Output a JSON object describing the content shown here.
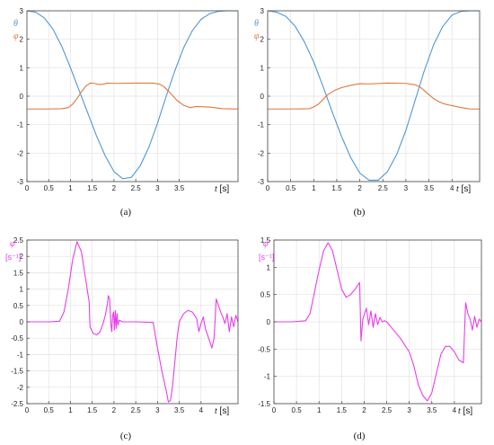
{
  "chart_data": [
    {
      "type": "line",
      "panel": "a",
      "caption": "(a)",
      "xlabel_var": "t",
      "xlabel_unit": "[s]",
      "xlim": [
        0,
        4.85
      ],
      "ylim": [
        -3,
        3
      ],
      "xticks": [
        0,
        0.5,
        1,
        1.5,
        2,
        2.5,
        3,
        3.5
      ],
      "yticks": [
        3,
        2,
        1,
        0,
        -1,
        -2,
        -3
      ],
      "grid": true,
      "series": [
        {
          "name": "θ",
          "color": "#4f97d4",
          "x": [
            0,
            0.2,
            0.4,
            0.6,
            0.8,
            1.0,
            1.2,
            1.4,
            1.6,
            1.8,
            2.0,
            2.2,
            2.4,
            2.6,
            2.8,
            3.0,
            3.2,
            3.4,
            3.6,
            3.8,
            4.0,
            4.2,
            4.4,
            4.6,
            4.85
          ],
          "y": [
            3.0,
            2.95,
            2.75,
            2.35,
            1.75,
            1.0,
            0.2,
            -0.6,
            -1.4,
            -2.1,
            -2.65,
            -2.9,
            -2.85,
            -2.45,
            -1.8,
            -0.95,
            0.0,
            0.9,
            1.7,
            2.3,
            2.7,
            2.9,
            2.98,
            3.0,
            3.0
          ]
        },
        {
          "name": "φ",
          "color": "#e0773c",
          "x": [
            0,
            0.4,
            0.8,
            0.95,
            1.05,
            1.15,
            1.25,
            1.35,
            1.45,
            1.55,
            1.65,
            1.75,
            1.85,
            2.0,
            2.5,
            2.9,
            3.05,
            3.15,
            3.25,
            3.35,
            3.45,
            3.6,
            3.75,
            3.9,
            4.2,
            4.5,
            4.85
          ],
          "y": [
            -0.45,
            -0.45,
            -0.44,
            -0.4,
            -0.28,
            -0.08,
            0.15,
            0.35,
            0.46,
            0.45,
            0.41,
            0.42,
            0.46,
            0.45,
            0.46,
            0.46,
            0.42,
            0.33,
            0.18,
            0.02,
            -0.15,
            -0.32,
            -0.4,
            -0.36,
            -0.38,
            -0.44,
            -0.45
          ]
        }
      ]
    },
    {
      "type": "line",
      "panel": "b",
      "caption": "(b)",
      "xlabel_var": "t",
      "xlabel_unit": "[s]",
      "xlim": [
        0,
        4.6
      ],
      "ylim": [
        -3,
        3
      ],
      "xticks": [
        0,
        0.5,
        1,
        1.5,
        2,
        2.5,
        3,
        3.5,
        4
      ],
      "yticks": [
        3,
        2,
        1,
        0,
        -1,
        -2,
        -3
      ],
      "grid": true,
      "series": [
        {
          "name": "θ",
          "color": "#4f97d4",
          "x": [
            0,
            0.2,
            0.4,
            0.6,
            0.8,
            1.0,
            1.2,
            1.4,
            1.6,
            1.8,
            2.0,
            2.2,
            2.4,
            2.6,
            2.8,
            3.0,
            3.2,
            3.4,
            3.6,
            3.8,
            4.0,
            4.2,
            4.4,
            4.6
          ],
          "y": [
            3.0,
            2.95,
            2.8,
            2.45,
            1.9,
            1.2,
            0.35,
            -0.55,
            -1.4,
            -2.15,
            -2.7,
            -2.95,
            -2.95,
            -2.65,
            -2.05,
            -1.2,
            -0.15,
            0.9,
            1.8,
            2.45,
            2.85,
            2.98,
            3.0,
            3.0
          ]
        },
        {
          "name": "φ",
          "color": "#e0773c",
          "x": [
            0,
            0.5,
            0.9,
            1.0,
            1.1,
            1.2,
            1.3,
            1.45,
            1.6,
            1.8,
            2.0,
            2.2,
            2.6,
            3.0,
            3.2,
            3.3,
            3.4,
            3.5,
            3.6,
            3.7,
            3.8,
            3.9,
            4.0,
            4.2,
            4.4,
            4.6
          ],
          "y": [
            -0.45,
            -0.45,
            -0.44,
            -0.38,
            -0.28,
            -0.12,
            0.05,
            0.2,
            0.3,
            0.38,
            0.44,
            0.43,
            0.46,
            0.45,
            0.4,
            0.33,
            0.2,
            0.05,
            -0.08,
            -0.18,
            -0.25,
            -0.3,
            -0.33,
            -0.4,
            -0.45,
            -0.45
          ]
        }
      ]
    },
    {
      "type": "line",
      "panel": "c",
      "caption": "(c)",
      "xlabel_var": "t",
      "xlabel_unit": "[s]",
      "ylabel_var": "φ̇",
      "ylabel_unit": "[s⁻¹]",
      "xlim": [
        0,
        4.85
      ],
      "ylim": [
        -2.5,
        2.5
      ],
      "xticks": [
        0,
        0.5,
        1,
        1.5,
        2,
        2.5,
        3,
        3.5,
        4
      ],
      "yticks": [
        2.5,
        2,
        1.5,
        1,
        0.5,
        0,
        -0.5,
        -1,
        -1.5,
        -2,
        -2.5
      ],
      "grid": true,
      "series": [
        {
          "name": "φ̇",
          "color": "#e83ee8",
          "x": [
            0,
            0.5,
            0.75,
            0.85,
            0.95,
            1.05,
            1.15,
            1.25,
            1.35,
            1.43,
            1.45,
            1.52,
            1.6,
            1.68,
            1.75,
            1.8,
            1.85,
            1.87,
            1.9,
            1.93,
            1.95,
            1.97,
            1.99,
            2.01,
            2.03,
            2.05,
            2.07,
            2.09,
            2.12,
            2.2,
            2.5,
            2.9,
            3.0,
            3.1,
            3.2,
            3.25,
            3.3,
            3.35,
            3.4,
            3.45,
            3.5,
            3.6,
            3.7,
            3.8,
            3.9,
            3.95,
            4.0,
            4.05,
            4.1,
            4.15,
            4.2,
            4.25,
            4.3,
            4.35,
            4.4,
            4.45,
            4.5,
            4.55,
            4.6,
            4.65,
            4.7,
            4.75,
            4.8,
            4.85
          ],
          "y": [
            0,
            0,
            0.02,
            0.3,
            1.0,
            1.9,
            2.45,
            2.15,
            1.3,
            0.6,
            -0.15,
            -0.35,
            -0.4,
            -0.3,
            -0.05,
            0.2,
            0.55,
            0.8,
            0.7,
            -0.1,
            -0.3,
            0.2,
            0.3,
            -0.25,
            0.35,
            -0.2,
            0.25,
            -0.1,
            0.05,
            0,
            0,
            -0.02,
            -0.8,
            -1.5,
            -2.1,
            -2.45,
            -2.4,
            -1.9,
            -1.2,
            -0.5,
            0,
            0.25,
            0.35,
            0.3,
            0.1,
            -0.3,
            -0.05,
            0.15,
            -0.2,
            -0.4,
            -0.6,
            -0.8,
            -0.5,
            0.7,
            0.5,
            0.3,
            0.15,
            -0.05,
            0.25,
            -0.3,
            0.15,
            -0.15,
            0.2,
            0
          ]
        }
      ]
    },
    {
      "type": "line",
      "panel": "d",
      "caption": "(d)",
      "xlabel_var": "t",
      "xlabel_unit": "[s]",
      "ylabel_var": "φ̇",
      "ylabel_unit": "[s⁻¹]",
      "xlim": [
        0,
        4.6
      ],
      "ylim": [
        -1.5,
        1.5
      ],
      "xticks": [
        0,
        0.5,
        1,
        1.5,
        2,
        2.5,
        3,
        3.5,
        4
      ],
      "yticks": [
        1.5,
        1,
        0.5,
        0,
        -0.5,
        -1,
        -1.5
      ],
      "grid": true,
      "series": [
        {
          "name": "φ̇",
          "color": "#e83ee8",
          "x": [
            0,
            0.4,
            0.7,
            0.8,
            0.9,
            1.0,
            1.1,
            1.2,
            1.3,
            1.4,
            1.5,
            1.6,
            1.7,
            1.8,
            1.9,
            1.93,
            1.97,
            2.05,
            2.1,
            2.15,
            2.2,
            2.25,
            2.3,
            2.35,
            2.4,
            2.45,
            2.5,
            2.6,
            2.8,
            3.0,
            3.1,
            3.2,
            3.3,
            3.4,
            3.5,
            3.6,
            3.7,
            3.8,
            3.9,
            4.0,
            4.1,
            4.2,
            4.25,
            4.3,
            4.35,
            4.4,
            4.45,
            4.5,
            4.55,
            4.6
          ],
          "y": [
            0,
            0,
            0.02,
            0.15,
            0.55,
            0.95,
            1.3,
            1.45,
            1.3,
            0.95,
            0.6,
            0.45,
            0.5,
            0.6,
            0.72,
            -0.35,
            0.05,
            0.25,
            -0.05,
            0.2,
            -0.1,
            0.15,
            -0.05,
            0.08,
            0,
            0.02,
            0,
            -0.1,
            -0.3,
            -0.55,
            -0.8,
            -1.15,
            -1.35,
            -1.45,
            -1.3,
            -0.95,
            -0.6,
            -0.45,
            -0.45,
            -0.55,
            -0.7,
            -0.75,
            0.35,
            0.15,
            0.05,
            -0.15,
            0.1,
            -0.1,
            0.05,
            0
          ]
        }
      ]
    }
  ],
  "legend": {
    "theta": "θ",
    "phi": "φ"
  }
}
